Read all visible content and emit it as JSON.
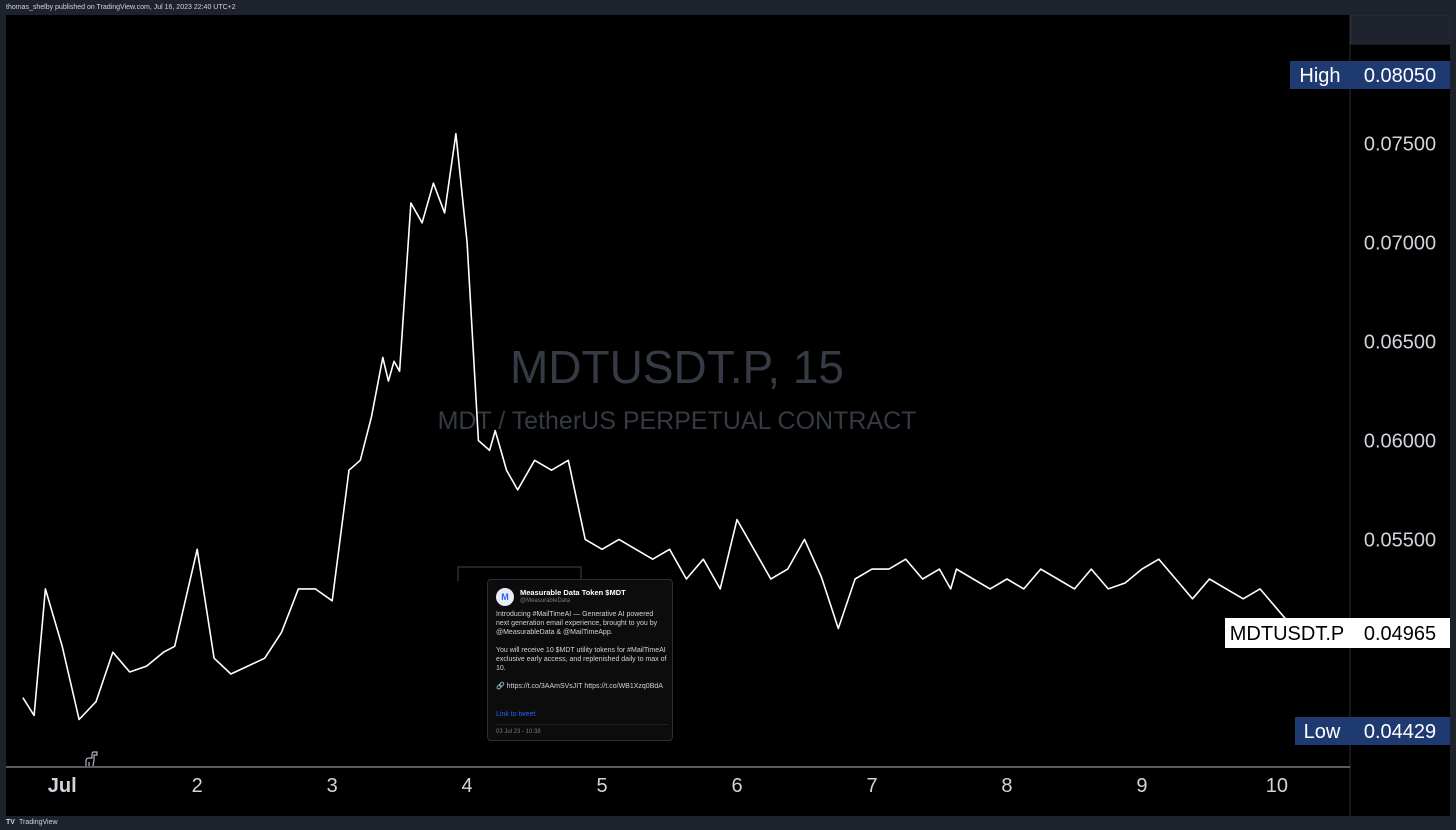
{
  "header": {
    "publisher_text": "thomas_shelby published on TradingView.com, Jul 16, 2023 22:40 UTC+2"
  },
  "footer": {
    "brand": "TradingView",
    "logo_icon": "tradingview-logo-icon"
  },
  "watermark": {
    "title": "MDTUSDT.P, 15",
    "subtitle": "MDT / TetherUS PERPETUAL CONTRACT"
  },
  "colors": {
    "background": "#000000",
    "line": "#ffffff",
    "high_low_label_bg": "#1e3a70",
    "last_price_label_bg": "#ffffff",
    "axis_text": "#d1d4dc"
  },
  "tweet": {
    "author": "Measurable Data Token $MDT",
    "handle": "@MeasurableData",
    "paragraphs": [
      "Introducing #MailTimeAI — Generative AI powered next generation email experience, brought to you by @MeasurableData & @MailTimeApp.",
      "You will receive 10 $MDT utility tokens for #MailTimeAI exclusive early access, and replenished daily to max of 10.",
      "🔗 https://t.co/3AAmSVsJIT https://t.co/WB1Xzq0BdA"
    ],
    "link_text": "Link to tweet",
    "date": "03 Jul 23 - 10:38"
  },
  "chart_data": {
    "type": "line",
    "symbol": "MDTUSDT.P",
    "interval": "15",
    "description": "MDT / TetherUS PERPETUAL CONTRACT",
    "x_ticks": [
      "Jul",
      "2",
      "3",
      "4",
      "5",
      "6",
      "7",
      "8",
      "9",
      "10"
    ],
    "y_ticks": [
      "0.07500",
      "0.07000",
      "0.06500",
      "0.06000",
      "0.05500"
    ],
    "ylim": [
      0.0435,
      0.0815
    ],
    "xlim": [
      "2023-06-30T14:00",
      "2023-07-10T13:00"
    ],
    "grid": false,
    "price_labels": {
      "high": {
        "label": "High",
        "value": "0.08050"
      },
      "low": {
        "label": "Low",
        "value": 0.04429,
        "text": "0.04429"
      },
      "last": {
        "label": "MDTUSDT.P",
        "value": 0.04965,
        "text": "0.04965"
      }
    },
    "series": [
      {
        "x": [
          "2023-06-30T17:00",
          "2023-06-30T19:00",
          "2023-06-30T21:00",
          "2023-07-01T00:00",
          "2023-07-01T03:00",
          "2023-07-01T06:00",
          "2023-07-01T09:00",
          "2023-07-01T12:00",
          "2023-07-01T15:00",
          "2023-07-01T18:00",
          "2023-07-01T20:00",
          "2023-07-02T00:00",
          "2023-07-02T03:00",
          "2023-07-02T06:00",
          "2023-07-02T09:00",
          "2023-07-02T12:00",
          "2023-07-02T15:00",
          "2023-07-02T18:00",
          "2023-07-02T21:00",
          "2023-07-03T00:00",
          "2023-07-03T03:00",
          "2023-07-03T05:00",
          "2023-07-03T07:00",
          "2023-07-03T09:00",
          "2023-07-03T10:00",
          "2023-07-03T11:00",
          "2023-07-03T12:00",
          "2023-07-03T14:00",
          "2023-07-03T16:00",
          "2023-07-03T18:00",
          "2023-07-03T20:00",
          "2023-07-03T22:00",
          "2023-07-04T00:00",
          "2023-07-04T02:00",
          "2023-07-04T04:00",
          "2023-07-04T05:00",
          "2023-07-04T06:00",
          "2023-07-04T07:00",
          "2023-07-04T09:00",
          "2023-07-04T12:00",
          "2023-07-04T15:00",
          "2023-07-04T18:00",
          "2023-07-04T21:00",
          "2023-07-05T00:00",
          "2023-07-05T03:00",
          "2023-07-05T06:00",
          "2023-07-05T09:00",
          "2023-07-05T12:00",
          "2023-07-05T15:00",
          "2023-07-05T18:00",
          "2023-07-05T21:00",
          "2023-07-06T00:00",
          "2023-07-06T03:00",
          "2023-07-06T06:00",
          "2023-07-06T09:00",
          "2023-07-06T12:00",
          "2023-07-06T15:00",
          "2023-07-06T18:00",
          "2023-07-06T21:00",
          "2023-07-07T00:00",
          "2023-07-07T03:00",
          "2023-07-07T06:00",
          "2023-07-07T09:00",
          "2023-07-07T12:00",
          "2023-07-07T14:00",
          "2023-07-07T15:00",
          "2023-07-07T18:00",
          "2023-07-07T21:00",
          "2023-07-08T00:00",
          "2023-07-08T03:00",
          "2023-07-08T06:00",
          "2023-07-08T09:00",
          "2023-07-08T12:00",
          "2023-07-08T15:00",
          "2023-07-08T18:00",
          "2023-07-08T21:00",
          "2023-07-09T00:00",
          "2023-07-09T03:00",
          "2023-07-09T06:00",
          "2023-07-09T09:00",
          "2023-07-09T12:00",
          "2023-07-09T15:00",
          "2023-07-09T18:00",
          "2023-07-09T21:00",
          "2023-07-10T00:00",
          "2023-07-10T03:00",
          "2023-07-10T06:00",
          "2023-07-10T08:00",
          "2023-07-10T10:00"
        ],
        "y": [
          0.047,
          0.0461,
          0.0525,
          0.0496,
          0.0459,
          0.0468,
          0.0493,
          0.0483,
          0.0486,
          0.0493,
          0.0496,
          0.0545,
          0.049,
          0.0482,
          0.0486,
          0.049,
          0.0503,
          0.0525,
          0.0525,
          0.0519,
          0.0585,
          0.059,
          0.0612,
          0.0642,
          0.063,
          0.064,
          0.0635,
          0.072,
          0.071,
          0.073,
          0.0715,
          0.0755,
          0.07,
          0.06,
          0.0595,
          0.0605,
          0.0595,
          0.0585,
          0.0575,
          0.059,
          0.0585,
          0.059,
          0.055,
          0.0545,
          0.055,
          0.0545,
          0.054,
          0.0545,
          0.053,
          0.054,
          0.0525,
          0.056,
          0.0545,
          0.053,
          0.0535,
          0.055,
          0.0531,
          0.0505,
          0.053,
          0.0535,
          0.0535,
          0.054,
          0.053,
          0.0535,
          0.0525,
          0.0535,
          0.053,
          0.0525,
          0.053,
          0.0525,
          0.0535,
          0.053,
          0.0525,
          0.0535,
          0.0525,
          0.0528,
          0.0535,
          0.054,
          0.053,
          0.052,
          0.053,
          0.0525,
          0.052,
          0.0525,
          0.0515,
          0.0505,
          0.05,
          0.0498,
          0.0496
        ]
      }
    ]
  }
}
